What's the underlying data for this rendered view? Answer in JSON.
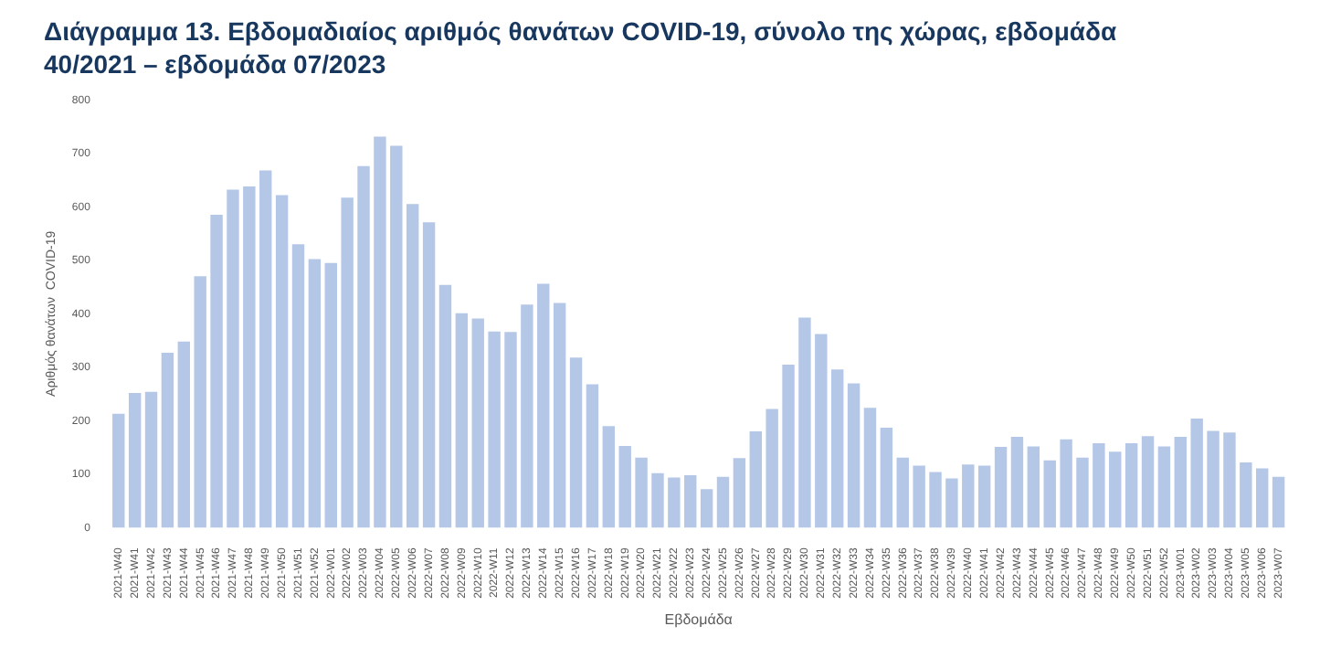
{
  "chart_data": {
    "type": "bar",
    "title": "Διάγραμμα 13. Εβδομαδιαίος αριθμός θανάτων COVID-19, σύνολο της χώρας, εβδομάδα 40/2021 – εβδομάδα 07/2023",
    "xlabel": "Εβδομάδα",
    "ylabel": "Αριθμός θανάτων  COVID-19",
    "categories": [
      "2021-W40",
      "2021-W41",
      "2021-W42",
      "2021-W43",
      "2021-W44",
      "2021-W45",
      "2021-W46",
      "2021-W47",
      "2021-W48",
      "2021-W49",
      "2021-W50",
      "2021-W51",
      "2021-W52",
      "2022-W01",
      "2022-W02",
      "2022-W03",
      "2022-W04",
      "2022-W05",
      "2022-W06",
      "2022-W07",
      "2022-W08",
      "2022-W09",
      "2022-W10",
      "2022-W11",
      "2022-W12",
      "2022-W13",
      "2022-W14",
      "2022-W15",
      "2022-W16",
      "2022-W17",
      "2022-W18",
      "2022-W19",
      "2022-W20",
      "2022-W21",
      "2022-W22",
      "2022-W23",
      "2022-W24",
      "2022-W25",
      "2022-W26",
      "2022-W27",
      "2022-W28",
      "2022-W29",
      "2022-W30",
      "2022-W31",
      "2022-W32",
      "2022-W33",
      "2022-W34",
      "2022-W35",
      "2022-W36",
      "2022-W37",
      "2022-W38",
      "2022-W39",
      "2022-W40",
      "2022-W41",
      "2022-W42",
      "2022-W43",
      "2022-W44",
      "2022-W45",
      "2022-W46",
      "2022-W47",
      "2022-W48",
      "2022-W49",
      "2022-W50",
      "2022-W51",
      "2022-W52",
      "2023-W01",
      "2023-W02",
      "2023-W03",
      "2023-W04",
      "2023-W05",
      "2023-W06",
      "2023-W07"
    ],
    "values": [
      213,
      252,
      254,
      327,
      348,
      470,
      585,
      632,
      638,
      668,
      622,
      530,
      502,
      495,
      617,
      676,
      731,
      714,
      605,
      571,
      454,
      401,
      391,
      367,
      366,
      417,
      456,
      420,
      318,
      268,
      190,
      153,
      131,
      102,
      94,
      98,
      72,
      95,
      130,
      180,
      222,
      305,
      393,
      362,
      296,
      270,
      224,
      187,
      131,
      116,
      104,
      92,
      118,
      116,
      151,
      170,
      152,
      126,
      165,
      131,
      158,
      142,
      158,
      171,
      152,
      170,
      204,
      181,
      178,
      122,
      111,
      95
    ],
    "color": "#b4c7e7",
    "ylim": [
      0,
      800
    ],
    "yticks": [
      0,
      100,
      200,
      300,
      400,
      500,
      600,
      700,
      800
    ],
    "grid": false,
    "legend": false
  }
}
